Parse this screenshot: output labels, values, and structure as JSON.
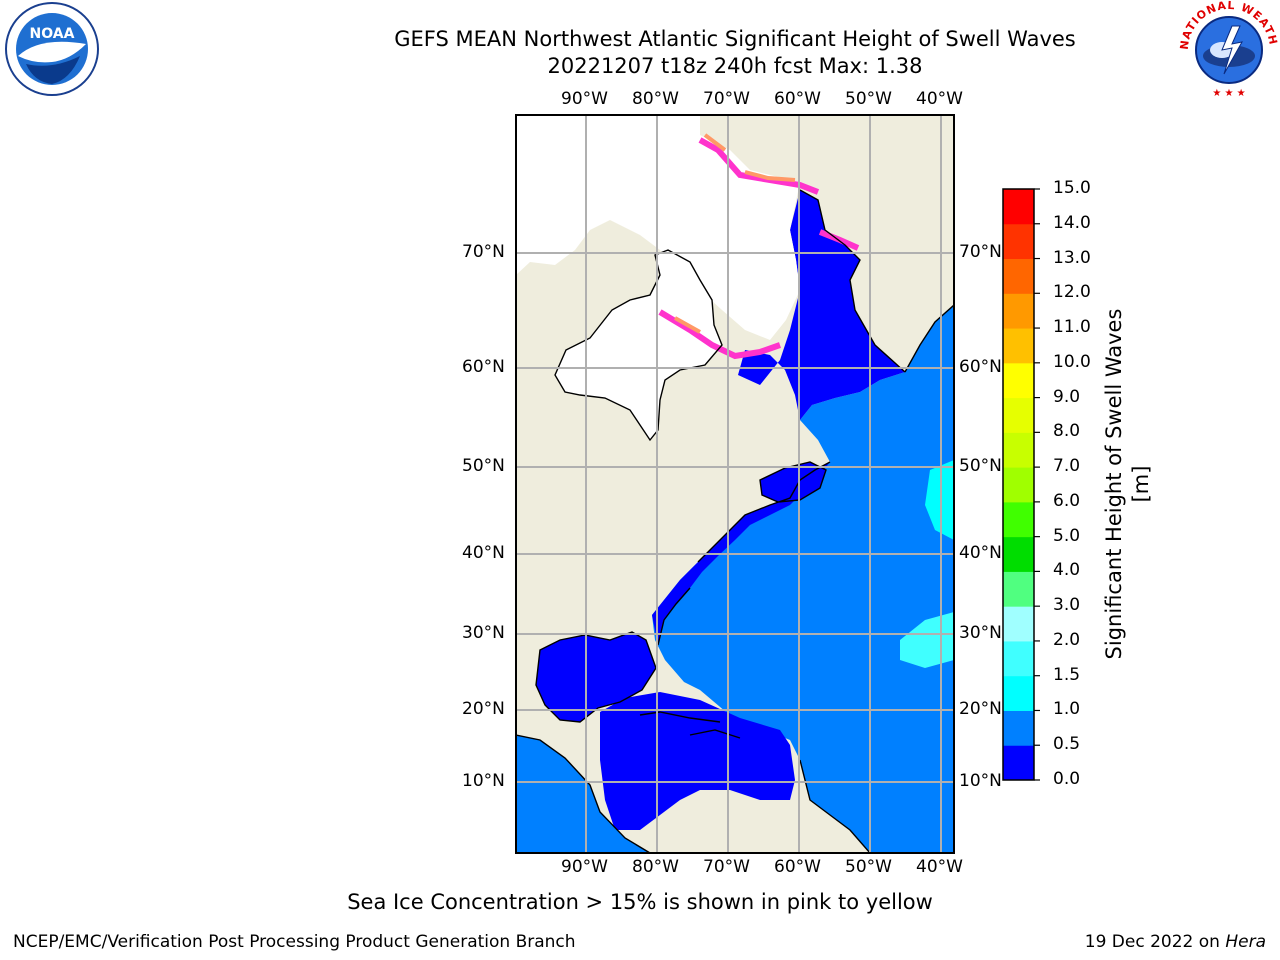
{
  "title": {
    "line1": "GEFS MEAN Northwest Atlantic Significant Height of Swell Waves",
    "line2": "20221207 t18z 240h fcst   Max: 1.38"
  },
  "map": {
    "lon_labels": [
      "90°W",
      "80°W",
      "70°W",
      "60°W",
      "50°W",
      "40°W"
    ],
    "lat_labels": [
      "70°N",
      "60°N",
      "50°N",
      "40°N",
      "30°N",
      "20°N",
      "10°N"
    ],
    "colors": {
      "land": "#efeddd",
      "ocean_low": "#0000ff",
      "ocean_mid": "#0080ff",
      "swell_cyan": "#00ffff",
      "ice_white": "#ffffff",
      "ice_pink": "#ff33cc",
      "ice_orange": "#ff9966",
      "grid": "#b0b0b0"
    }
  },
  "colorbar": {
    "title": "Significant Height of Swell Waves [m]",
    "ticks": [
      "15.0",
      "14.0",
      "13.0",
      "12.0",
      "11.0",
      "10.0",
      "9.0",
      "8.0",
      "7.0",
      "6.0",
      "5.0",
      "4.0",
      "3.0",
      "2.0",
      "1.5",
      "1.0",
      "0.5",
      "0.0"
    ],
    "colors": [
      "#0000ff",
      "#0080ff",
      "#00ffff",
      "#40ffff",
      "#a0ffff",
      "#50ff80",
      "#00dd00",
      "#40ff00",
      "#a0ff00",
      "#c8ff00",
      "#e6ff00",
      "#ffff00",
      "#ffc000",
      "#ff9900",
      "#ff6600",
      "#ff3300",
      "#ff0000"
    ]
  },
  "note": "Sea Ice Concentration > 15% is shown in pink to yellow",
  "footer": {
    "left": "NCEP/EMC/Verification Post Processing Product Generation Branch",
    "right_date": "19 Dec 2022 on ",
    "right_host": "Hera"
  },
  "logos": {
    "noaa": "NOAA",
    "nws": "NATIONAL WEATHER SERVICE"
  }
}
